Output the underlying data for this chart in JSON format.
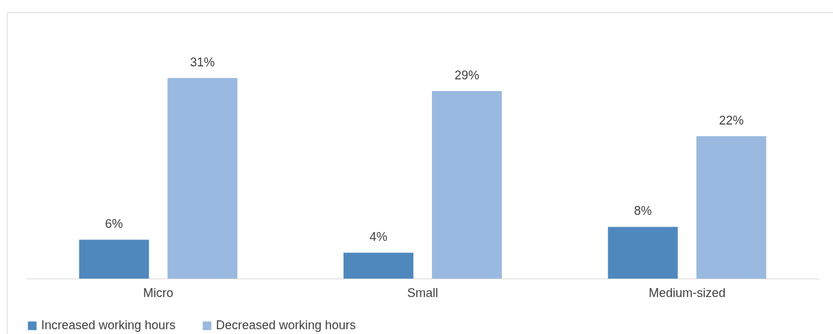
{
  "chart_data": {
    "type": "bar",
    "categories": [
      "Micro",
      "Small",
      "Medium-sized"
    ],
    "series": [
      {
        "name": "Increased working hours",
        "color": "#4f88bd",
        "values": [
          6,
          4,
          8
        ],
        "value_labels": [
          "6%",
          "4%",
          "8%"
        ]
      },
      {
        "name": "Decreased working hours",
        "color": "#99b9e0",
        "values": [
          31,
          29,
          22
        ],
        "value_labels": [
          "31%",
          "29%",
          "22%"
        ]
      }
    ],
    "legend": "bottom"
  }
}
